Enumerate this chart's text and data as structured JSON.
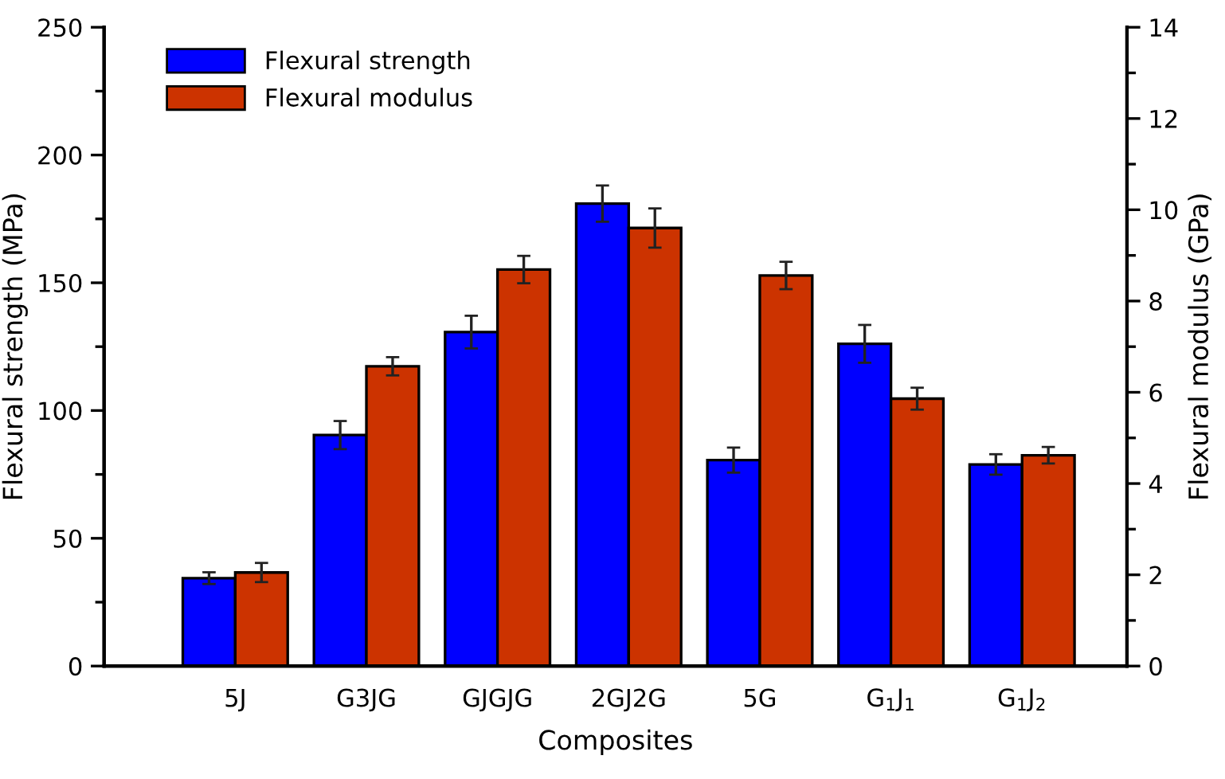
{
  "chart_data": {
    "type": "bar",
    "xlabel": "Composites",
    "ylabel": "Flexural strength (MPa)",
    "y2label": "Flexural modulus (GPa)",
    "categories": [
      "5J",
      "G3JG",
      "GJGJG",
      "2GJ2G",
      "5G",
      "G$_{1}$J$_{1}$",
      "G$_{1}$J$_{2}$"
    ],
    "series": [
      {
        "name": "Flexural strength",
        "color": "#0000ff",
        "values": [
          34.4,
          90.4,
          130.7,
          181,
          80.6,
          126.1,
          78.9
        ],
        "errors": [
          2.3,
          5.5,
          6.4,
          7.1,
          4.9,
          7.4,
          4.0
        ]
      },
      {
        "name": "Flexural modulus",
        "color": "#cc3300",
        "axis": "y2",
        "values": [
          2.05,
          6.57,
          8.69,
          9.6,
          8.56,
          5.86,
          4.62
        ],
        "errors": [
          0.21,
          0.2,
          0.3,
          0.43,
          0.3,
          0.24,
          0.18
        ]
      }
    ],
    "ylim": [
      0,
      250
    ],
    "yticks": [
      0,
      50,
      100,
      150,
      200,
      250
    ],
    "y2lim": [
      0,
      14
    ],
    "y2ticks": [
      0,
      2,
      4,
      6,
      8,
      10,
      12,
      14
    ],
    "legend": "top left",
    "grid": false
  }
}
